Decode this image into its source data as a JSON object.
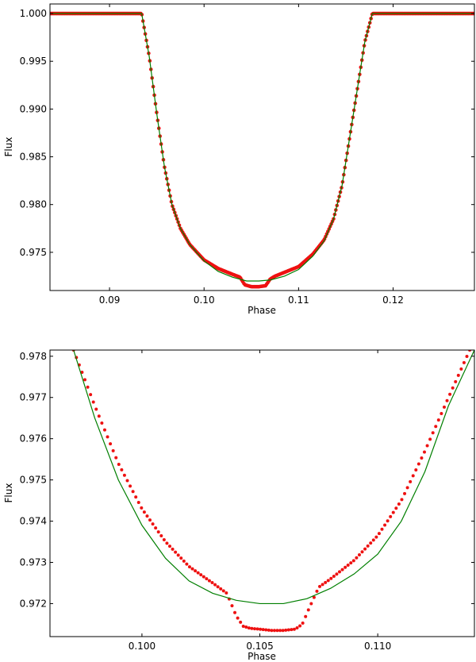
{
  "chart_data": [
    {
      "type": "scatter",
      "title": "",
      "xlabel": "Phase",
      "ylabel": "Flux",
      "xlim": [
        0.0837,
        0.1286
      ],
      "ylim": [
        0.971,
        1.001
      ],
      "xticks": [
        0.09,
        0.1,
        0.11,
        0.12
      ],
      "xtick_labels": [
        "0.09",
        "0.10",
        "0.11",
        "0.12"
      ],
      "yticks": [
        0.975,
        0.98,
        0.985,
        0.99,
        0.995,
        1.0
      ],
      "ytick_labels": [
        "0.975",
        "0.980",
        "0.985",
        "0.990",
        "0.995",
        "1.000"
      ],
      "grid": false,
      "legend": "none",
      "series": [
        {
          "kind": "model-line",
          "color": "#007f00",
          "x": [
            0.0837,
            0.0934,
            0.0942,
            0.095,
            0.0958,
            0.0966,
            0.0975,
            0.0985,
            0.1,
            0.1015,
            0.103,
            0.1045,
            0.1058,
            0.107,
            0.1085,
            0.11,
            0.1115,
            0.1127,
            0.1137,
            0.1146,
            0.1154,
            0.1162,
            0.117,
            0.1178,
            0.1286
          ],
          "y": [
            1.0,
            1.0,
            0.9955,
            0.9895,
            0.984,
            0.98,
            0.9775,
            0.9758,
            0.9741,
            0.973,
            0.9724,
            0.972,
            0.972,
            0.9721,
            0.9725,
            0.9732,
            0.9746,
            0.9762,
            0.9785,
            0.982,
            0.987,
            0.992,
            0.997,
            1.0,
            1.0
          ]
        },
        {
          "kind": "data-points",
          "color": "#ee1111",
          "x": [
            0.0837,
            0.0934,
            0.0942,
            0.095,
            0.0958,
            0.0966,
            0.0975,
            0.0985,
            0.1,
            0.1015,
            0.103,
            0.1038,
            0.1043,
            0.105,
            0.1058,
            0.1065,
            0.107,
            0.1075,
            0.1085,
            0.11,
            0.1115,
            0.1127,
            0.1137,
            0.1146,
            0.1154,
            0.1162,
            0.117,
            0.1178,
            0.1286
          ],
          "y": [
            1.0,
            1.0,
            0.9955,
            0.9895,
            0.984,
            0.98,
            0.9775,
            0.9758,
            0.9742,
            0.9733,
            0.9727,
            0.9724,
            0.9716,
            0.9714,
            0.9714,
            0.9715,
            0.9722,
            0.9725,
            0.9729,
            0.9735,
            0.9748,
            0.9763,
            0.9785,
            0.982,
            0.987,
            0.992,
            0.997,
            1.0,
            1.0
          ]
        }
      ]
    },
    {
      "type": "scatter",
      "title": "",
      "xlabel": "Phase",
      "ylabel": "Flux",
      "xlim": [
        0.0961,
        0.1141
      ],
      "ylim": [
        0.9712,
        0.97815
      ],
      "xticks": [
        0.1,
        0.105,
        0.11
      ],
      "xtick_labels": [
        "0.100",
        "0.105",
        "0.110"
      ],
      "yticks": [
        0.972,
        0.973,
        0.974,
        0.975,
        0.976,
        0.977,
        0.978
      ],
      "ytick_labels": [
        "0.972",
        "0.973",
        "0.974",
        "0.975",
        "0.976",
        "0.977",
        "0.978"
      ],
      "grid": false,
      "legend": "none",
      "series": [
        {
          "kind": "model-line",
          "color": "#007f00",
          "x": [
            0.0971,
            0.098,
            0.099,
            0.1,
            0.101,
            0.102,
            0.103,
            0.104,
            0.105,
            0.106,
            0.107,
            0.108,
            0.109,
            0.11,
            0.111,
            0.112,
            0.113,
            0.1141
          ],
          "y": [
            0.97815,
            0.9765,
            0.975,
            0.9739,
            0.9731,
            0.97255,
            0.97225,
            0.97208,
            0.972,
            0.972,
            0.97212,
            0.97237,
            0.97272,
            0.9732,
            0.974,
            0.9752,
            0.9768,
            0.97815
          ]
        },
        {
          "kind": "data-points",
          "color": "#ee1111",
          "x": [
            0.0971,
            0.098,
            0.099,
            0.1,
            0.101,
            0.102,
            0.103,
            0.1036,
            0.104,
            0.1043,
            0.1046,
            0.105,
            0.1055,
            0.106,
            0.1065,
            0.1068,
            0.1071,
            0.1075,
            0.108,
            0.109,
            0.11,
            0.111,
            0.112,
            0.113,
            0.1139
          ],
          "y": [
            0.97815,
            0.9768,
            0.9754,
            0.9743,
            0.9735,
            0.9729,
            0.9725,
            0.97225,
            0.9717,
            0.97145,
            0.9714,
            0.97138,
            0.97135,
            0.97135,
            0.97138,
            0.9715,
            0.9719,
            0.9724,
            0.9726,
            0.97305,
            0.97365,
            0.9745,
            0.9757,
            0.977,
            0.97815
          ]
        }
      ]
    }
  ]
}
